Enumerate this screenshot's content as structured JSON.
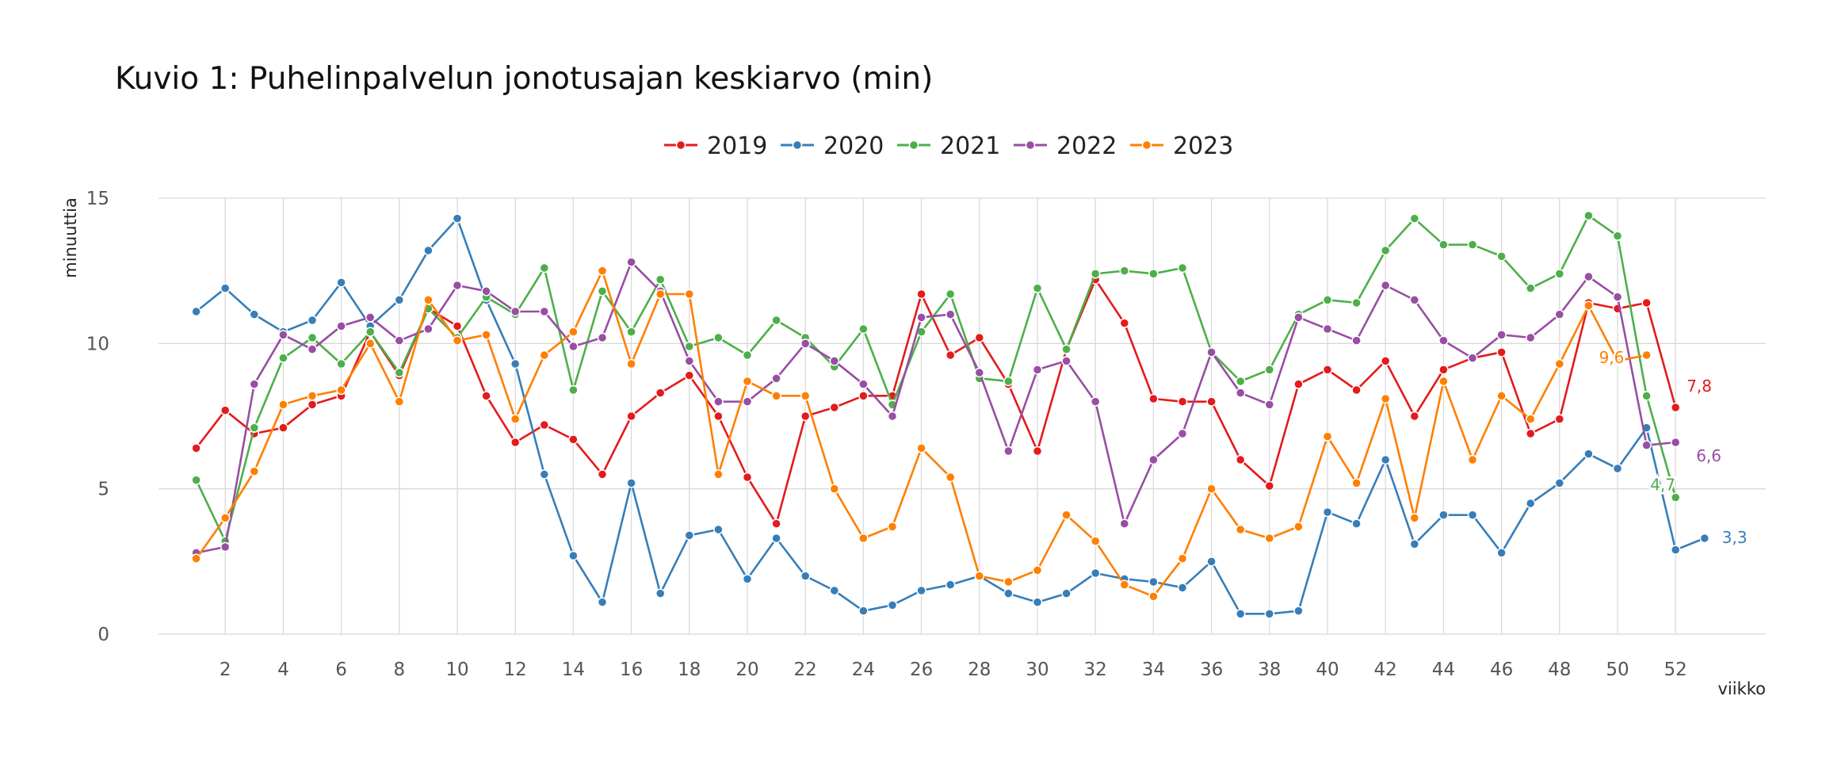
{
  "chart_data": {
    "type": "line",
    "title": "Kuvio 1: Puhelinpalvelun jonotusajan keskiarvo (min)",
    "xlabel": "viikko",
    "ylabel": "minuuttia",
    "xlim": [
      0,
      56
    ],
    "ylim": [
      0,
      15
    ],
    "x_ticks": [
      2,
      4,
      6,
      8,
      10,
      12,
      14,
      16,
      18,
      20,
      22,
      24,
      26,
      28,
      30,
      32,
      34,
      36,
      38,
      40,
      42,
      44,
      46,
      48,
      50,
      52
    ],
    "y_ticks": [
      0,
      5,
      10,
      15
    ],
    "grid": true,
    "legend_position": "top",
    "weeks": [
      1,
      2,
      3,
      4,
      5,
      6,
      7,
      8,
      9,
      10,
      11,
      12,
      13,
      14,
      15,
      16,
      17,
      18,
      19,
      20,
      21,
      22,
      23,
      24,
      25,
      26,
      27,
      28,
      29,
      30,
      31,
      32,
      33,
      34,
      35,
      36,
      37,
      38,
      39,
      40,
      41,
      42,
      43,
      44,
      45,
      46,
      47,
      48,
      49,
      50,
      51,
      52,
      53
    ],
    "series": [
      {
        "name": "2019",
        "color": "#e41a1c",
        "values": [
          6.4,
          7.7,
          6.9,
          7.1,
          7.9,
          8.2,
          10.4,
          8.9,
          11.2,
          10.6,
          8.2,
          6.6,
          7.2,
          6.7,
          5.5,
          7.5,
          8.3,
          8.9,
          7.5,
          5.4,
          3.8,
          7.5,
          7.8,
          8.2,
          8.2,
          11.7,
          9.6,
          10.2,
          8.6,
          6.3,
          9.8,
          12.2,
          10.7,
          8.1,
          8.0,
          8.0,
          6.0,
          5.1,
          8.6,
          9.1,
          8.4,
          9.4,
          7.5,
          9.1,
          9.5,
          9.7,
          6.9,
          7.4,
          11.4,
          11.2,
          11.4,
          7.8
        ],
        "end_label": "7,8"
      },
      {
        "name": "2020",
        "color": "#377eb8",
        "values": [
          11.1,
          11.9,
          11.0,
          10.4,
          10.8,
          12.1,
          10.6,
          11.5,
          13.2,
          14.3,
          11.5,
          9.3,
          5.5,
          2.7,
          1.1,
          5.2,
          1.4,
          3.4,
          3.6,
          1.9,
          3.3,
          2.0,
          1.5,
          0.8,
          1.0,
          1.5,
          1.7,
          2.0,
          1.4,
          1.1,
          1.4,
          2.1,
          1.9,
          1.8,
          1.6,
          2.5,
          0.7,
          0.7,
          0.8,
          4.2,
          3.8,
          6.0,
          3.1,
          4.1,
          4.1,
          2.8,
          4.5,
          5.2,
          6.2,
          5.7,
          7.1,
          2.9,
          3.3
        ],
        "end_label": "3,3"
      },
      {
        "name": "2021",
        "color": "#4daf4a",
        "values": [
          5.3,
          3.2,
          7.1,
          9.5,
          10.2,
          9.3,
          10.4,
          9.0,
          11.2,
          10.2,
          11.6,
          11.0,
          12.6,
          8.4,
          11.8,
          10.4,
          12.2,
          9.9,
          10.2,
          9.6,
          10.8,
          10.2,
          9.2,
          10.5,
          7.9,
          10.4,
          11.7,
          8.8,
          8.7,
          11.9,
          9.8,
          12.4,
          12.5,
          12.4,
          12.6,
          9.7,
          8.7,
          9.1,
          11.0,
          11.5,
          11.4,
          13.2,
          14.3,
          13.4,
          13.4,
          13.0,
          11.9,
          12.4,
          14.4,
          13.7,
          8.2,
          4.7
        ],
        "end_label": "4,7"
      },
      {
        "name": "2022",
        "color": "#984ea3",
        "values": [
          2.8,
          3.0,
          8.6,
          10.3,
          9.8,
          10.6,
          10.9,
          10.1,
          10.5,
          12.0,
          11.8,
          11.1,
          11.1,
          9.9,
          10.2,
          12.8,
          11.8,
          9.4,
          8.0,
          8.0,
          8.8,
          10.0,
          9.4,
          8.6,
          7.5,
          10.9,
          11.0,
          9.0,
          6.3,
          9.1,
          9.4,
          8.0,
          3.8,
          6.0,
          6.9,
          9.7,
          8.3,
          7.9,
          10.9,
          10.5,
          10.1,
          12.0,
          11.5,
          10.1,
          9.5,
          10.3,
          10.2,
          11.0,
          12.3,
          11.6,
          6.5,
          6.6
        ],
        "end_label": "6,6"
      },
      {
        "name": "2023",
        "color": "#ff7f00",
        "values": [
          2.6,
          4.0,
          5.6,
          7.9,
          8.2,
          8.4,
          10.0,
          8.0,
          11.5,
          10.1,
          10.3,
          7.4,
          9.6,
          10.4,
          12.5,
          9.3,
          11.7,
          11.7,
          5.5,
          8.7,
          8.2,
          8.2,
          5.0,
          3.3,
          3.7,
          6.4,
          5.4,
          2.0,
          1.8,
          2.2,
          4.1,
          3.2,
          1.7,
          1.3,
          2.6,
          5.0,
          3.6,
          3.3,
          3.7,
          6.8,
          5.2,
          8.1,
          4.0,
          8.7,
          6.0,
          8.2,
          7.4,
          9.3,
          11.3,
          9.4,
          9.6
        ],
        "end_label": "9,6"
      }
    ]
  }
}
